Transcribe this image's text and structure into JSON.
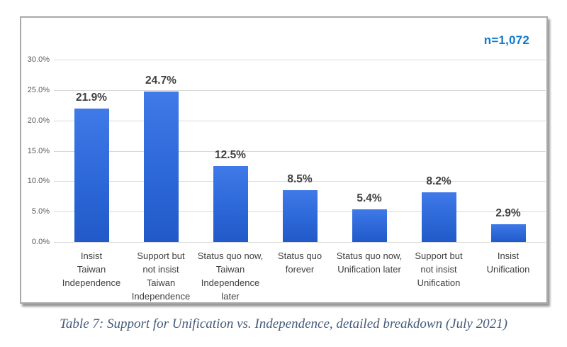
{
  "chart_data": {
    "type": "bar",
    "title": "",
    "sample_size_label": "n=1,072",
    "categories": [
      "Insist\nTaiwan\nIndependence",
      "Support but\nnot insist\nTaiwan\nIndependence",
      "Status quo now,\nTaiwan\nIndependence\nlater",
      "Status quo\nforever",
      "Status quo now,\nUnification later",
      "Support but\nnot insist\nUnification",
      "Insist\nUnification"
    ],
    "values": [
      21.9,
      24.7,
      12.5,
      8.5,
      5.4,
      8.2,
      2.9
    ],
    "value_labels": [
      "21.9%",
      "24.7%",
      "12.5%",
      "8.5%",
      "5.4%",
      "8.2%",
      "2.9%"
    ],
    "xlabel": "",
    "ylabel": "",
    "y_ticks": [
      "0.0%",
      "5.0%",
      "10.0%",
      "15.0%",
      "20.0%",
      "25.0%",
      "30.0%"
    ],
    "ylim": [
      0,
      30
    ],
    "y_step": 5,
    "grid": true,
    "legend_position": "none",
    "colors": {
      "bar": "#2d68d8",
      "sample_size_text": "#0f7ad1",
      "value_label_text": "#404040",
      "axis_text": "#595959",
      "gridline": "#d9d9d9"
    }
  },
  "caption": {
    "text": "Table 7: Support for Unification vs. Independence, detailed breakdown (July 2021)"
  }
}
